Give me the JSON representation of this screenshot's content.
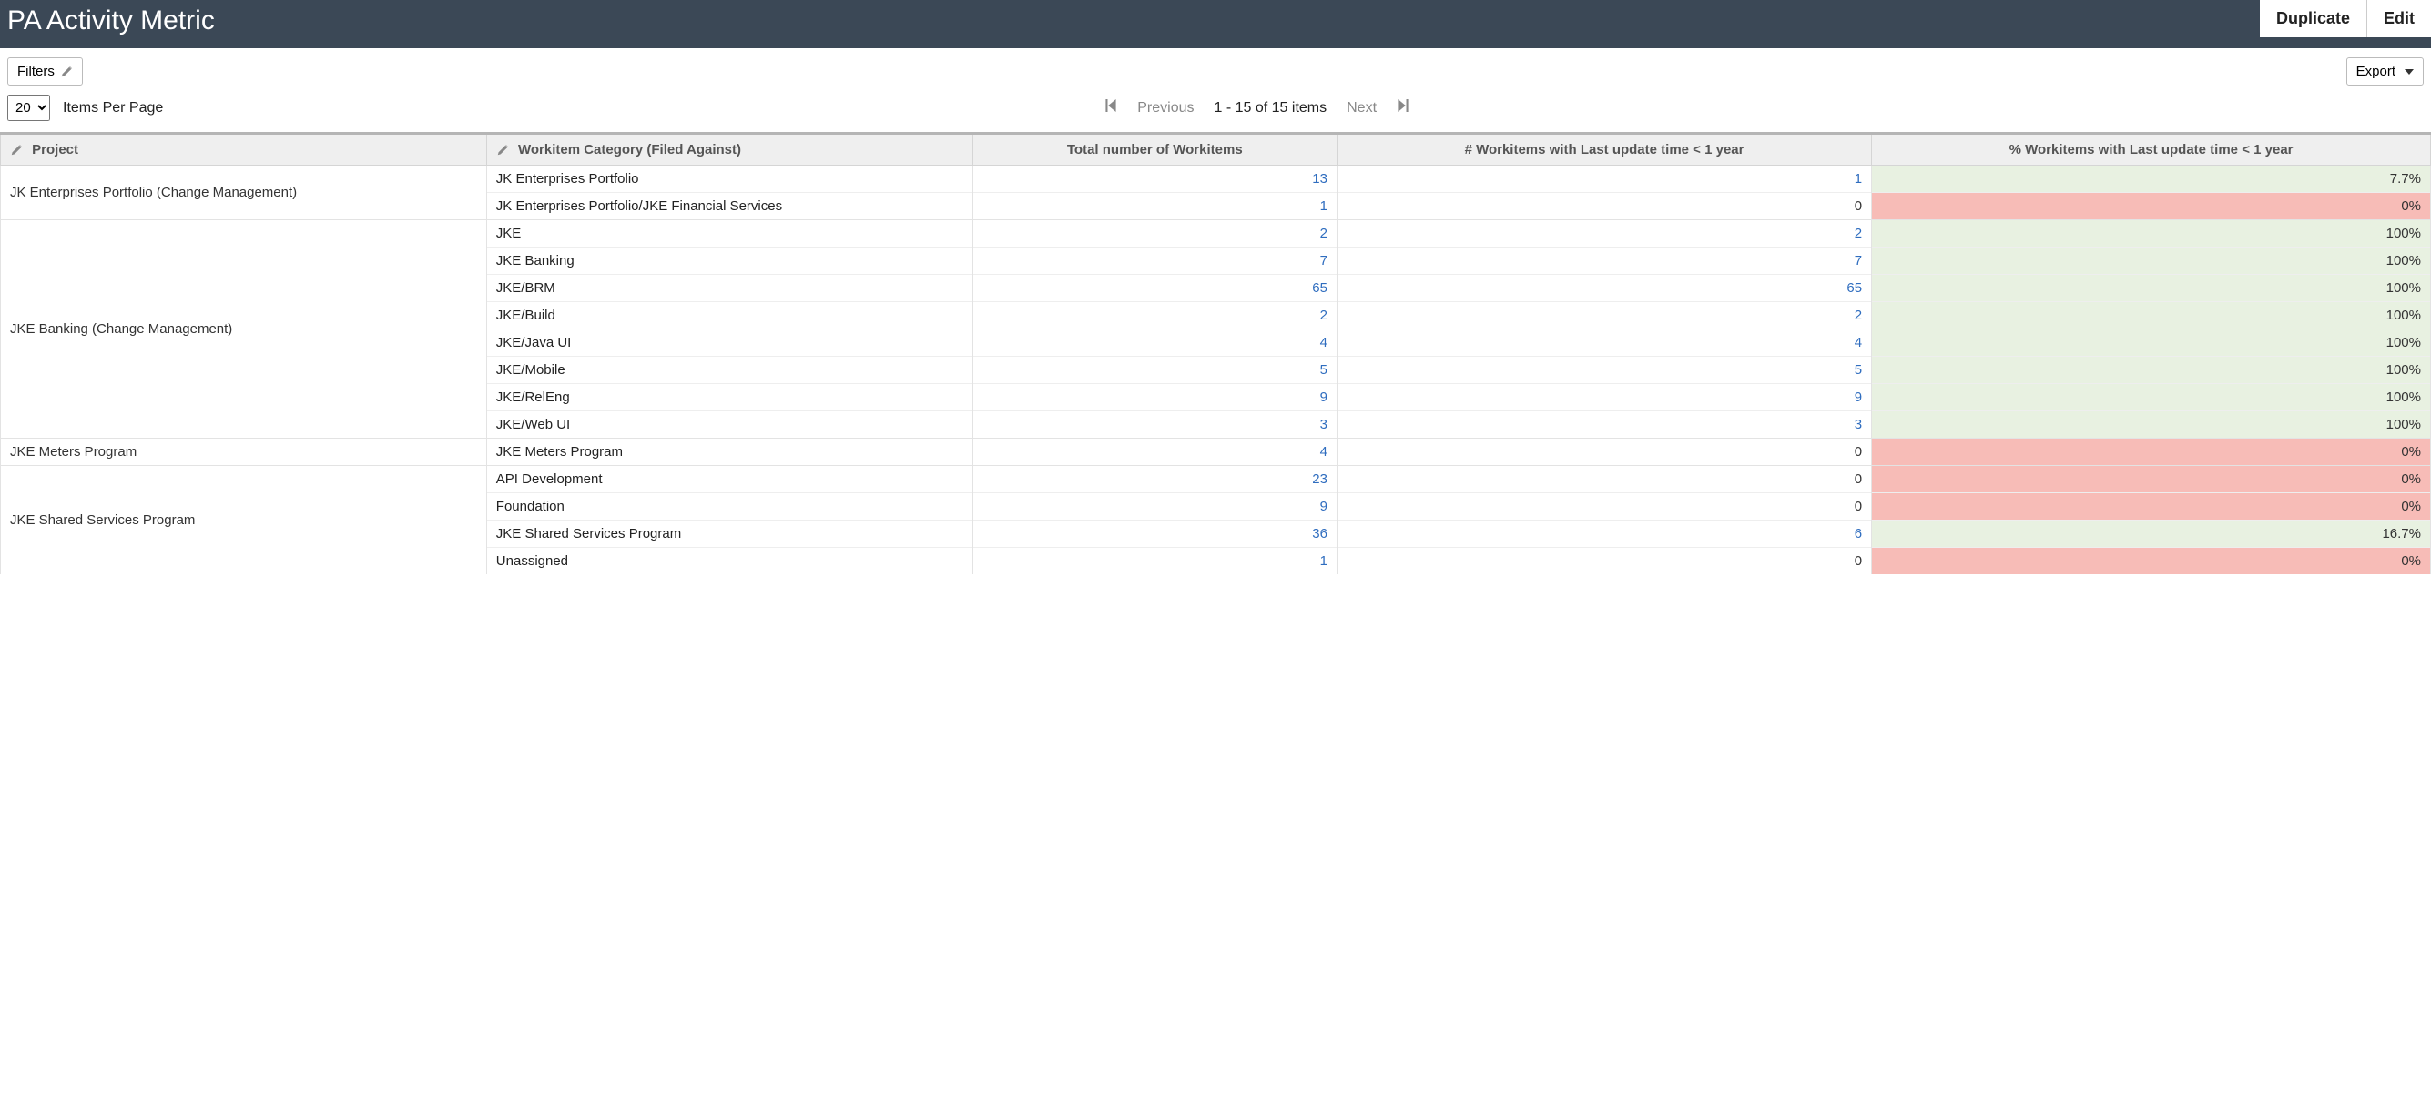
{
  "header": {
    "title": "PA Activity Metric",
    "duplicate_label": "Duplicate",
    "edit_label": "Edit"
  },
  "toolbar": {
    "filters_label": "Filters",
    "export_label": "Export"
  },
  "pager": {
    "items_per_page_value": "20",
    "items_per_page_label": "Items Per Page",
    "previous_label": "Previous",
    "range_label": "1 - 15 of 15 items",
    "next_label": "Next"
  },
  "columns": {
    "project": "Project",
    "category": "Workitem Category (Filed Against)",
    "total": "Total number of Workitems",
    "recent_count": "# Workitems with Last update time < 1 year",
    "recent_pct": "% Workitems with Last update time < 1 year"
  },
  "colors": {
    "header_bg": "#3b4856",
    "link": "#2f6dbf",
    "pct_good_bg": "#e8f1e1",
    "pct_bad_bg": "#f7bcb7"
  },
  "groups": [
    {
      "project": "JK Enterprises Portfolio (Change Management)",
      "rows": [
        {
          "category": "JK Enterprises Portfolio",
          "total": "13",
          "recent": "1",
          "recent_link": true,
          "pct": "7.7%",
          "pct_class": "pct-green"
        },
        {
          "category": "JK Enterprises Portfolio/JKE Financial Services",
          "total": "1",
          "recent": "0",
          "recent_link": false,
          "pct": "0%",
          "pct_class": "pct-red"
        }
      ]
    },
    {
      "project": "JKE Banking (Change Management)",
      "rows": [
        {
          "category": "JKE",
          "total": "2",
          "recent": "2",
          "recent_link": true,
          "pct": "100%",
          "pct_class": "pct-green"
        },
        {
          "category": "JKE Banking",
          "total": "7",
          "recent": "7",
          "recent_link": true,
          "pct": "100%",
          "pct_class": "pct-green"
        },
        {
          "category": "JKE/BRM",
          "total": "65",
          "recent": "65",
          "recent_link": true,
          "pct": "100%",
          "pct_class": "pct-green"
        },
        {
          "category": "JKE/Build",
          "total": "2",
          "recent": "2",
          "recent_link": true,
          "pct": "100%",
          "pct_class": "pct-green"
        },
        {
          "category": "JKE/Java UI",
          "total": "4",
          "recent": "4",
          "recent_link": true,
          "pct": "100%",
          "pct_class": "pct-green"
        },
        {
          "category": "JKE/Mobile",
          "total": "5",
          "recent": "5",
          "recent_link": true,
          "pct": "100%",
          "pct_class": "pct-green"
        },
        {
          "category": "JKE/RelEng",
          "total": "9",
          "recent": "9",
          "recent_link": true,
          "pct": "100%",
          "pct_class": "pct-green"
        },
        {
          "category": "JKE/Web UI",
          "total": "3",
          "recent": "3",
          "recent_link": true,
          "pct": "100%",
          "pct_class": "pct-green"
        }
      ]
    },
    {
      "project": "JKE Meters Program",
      "rows": [
        {
          "category": "JKE Meters Program",
          "total": "4",
          "recent": "0",
          "recent_link": false,
          "pct": "0%",
          "pct_class": "pct-red"
        }
      ]
    },
    {
      "project": "JKE Shared Services Program",
      "rows": [
        {
          "category": "API Development",
          "total": "23",
          "recent": "0",
          "recent_link": false,
          "pct": "0%",
          "pct_class": "pct-red"
        },
        {
          "category": "Foundation",
          "total": "9",
          "recent": "0",
          "recent_link": false,
          "pct": "0%",
          "pct_class": "pct-red"
        },
        {
          "category": "JKE Shared Services Program",
          "total": "36",
          "recent": "6",
          "recent_link": true,
          "pct": "16.7%",
          "pct_class": "pct-green"
        },
        {
          "category": "Unassigned",
          "total": "1",
          "recent": "0",
          "recent_link": false,
          "pct": "0%",
          "pct_class": "pct-red"
        }
      ]
    }
  ],
  "column_widths": {
    "project": "20%",
    "category": "20%",
    "total": "15%",
    "recent_count": "22%",
    "recent_pct": "23%"
  }
}
